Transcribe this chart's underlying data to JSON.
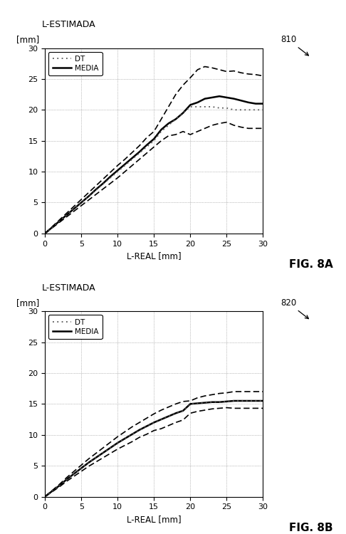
{
  "fig_width": 4.86,
  "fig_height": 7.5,
  "dpi": 100,
  "background_color": "#ffffff",
  "chart_a": {
    "title_left": "L-ESTIMADA",
    "mm_label": "[mm]",
    "xlabel": "L-REAL [mm]",
    "fig_label": "FIG. 8A",
    "ref_label": "810",
    "xlim": [
      0,
      30
    ],
    "ylim": [
      0,
      30
    ],
    "xticks": [
      0,
      5,
      10,
      15,
      20,
      25,
      30
    ],
    "yticks": [
      0,
      5,
      10,
      15,
      20,
      25,
      30
    ],
    "x": [
      0,
      1,
      2,
      3,
      4,
      5,
      6,
      7,
      8,
      9,
      10,
      11,
      12,
      13,
      14,
      15,
      16,
      17,
      18,
      19,
      20,
      21,
      22,
      23,
      24,
      25,
      26,
      27,
      28,
      29,
      30
    ],
    "media": [
      0,
      1.0,
      2.0,
      3.0,
      4.0,
      5.0,
      6.0,
      7.1,
      8.1,
      9.2,
      10.2,
      11.2,
      12.2,
      13.2,
      14.3,
      15.3,
      16.8,
      17.8,
      18.5,
      19.5,
      20.8,
      21.2,
      21.8,
      22.0,
      22.2,
      22.0,
      21.8,
      21.5,
      21.2,
      21.0,
      21.0
    ],
    "dt_dotted": [
      0,
      1.0,
      2.0,
      3.0,
      4.0,
      5.0,
      6.0,
      7.0,
      8.0,
      9.0,
      10.0,
      11.0,
      12.0,
      13.0,
      14.0,
      15.0,
      16.5,
      17.5,
      18.5,
      19.5,
      20.5,
      20.5,
      20.5,
      20.5,
      20.3,
      20.3,
      20.0,
      20.0,
      20.0,
      20.0,
      20.0
    ],
    "upper_dashed": [
      0,
      1.1,
      2.2,
      3.3,
      4.4,
      5.5,
      6.6,
      7.7,
      8.8,
      9.9,
      11.0,
      12.0,
      13.1,
      14.2,
      15.5,
      16.5,
      18.5,
      20.5,
      22.5,
      24.0,
      25.2,
      26.5,
      27.0,
      26.8,
      26.5,
      26.2,
      26.3,
      26.0,
      25.8,
      25.7,
      25.5
    ],
    "lower_dashed": [
      0,
      0.9,
      1.8,
      2.7,
      3.6,
      4.5,
      5.4,
      6.3,
      7.2,
      8.1,
      9.0,
      10.0,
      11.0,
      12.0,
      13.0,
      14.0,
      15.0,
      15.8,
      16.0,
      16.5,
      16.0,
      16.5,
      17.0,
      17.5,
      17.8,
      18.0,
      17.5,
      17.2,
      17.0,
      17.0,
      17.0
    ]
  },
  "chart_b": {
    "title_left": "L-ESTIMADA",
    "mm_label": "[mm]",
    "xlabel": "L-REAL [mm]",
    "fig_label": "FIG. 8B",
    "ref_label": "820",
    "xlim": [
      0,
      30
    ],
    "ylim": [
      0,
      30
    ],
    "xticks": [
      0,
      5,
      10,
      15,
      20,
      25,
      30
    ],
    "yticks": [
      0,
      5,
      10,
      15,
      20,
      25,
      30
    ],
    "x": [
      0,
      1,
      2,
      3,
      4,
      5,
      6,
      7,
      8,
      9,
      10,
      11,
      12,
      13,
      14,
      15,
      16,
      17,
      18,
      19,
      20,
      21,
      22,
      23,
      24,
      25,
      26,
      27,
      28,
      29,
      30
    ],
    "media": [
      0,
      0.9,
      1.8,
      2.8,
      3.7,
      4.6,
      5.5,
      6.3,
      7.1,
      7.9,
      8.7,
      9.4,
      10.1,
      10.8,
      11.4,
      12.0,
      12.5,
      13.0,
      13.5,
      13.9,
      15.0,
      15.1,
      15.2,
      15.3,
      15.3,
      15.4,
      15.5,
      15.5,
      15.5,
      15.5,
      15.5
    ],
    "dt_dotted": [
      0,
      0.9,
      1.8,
      2.8,
      3.7,
      4.6,
      5.5,
      6.3,
      7.1,
      7.9,
      8.7,
      9.4,
      10.1,
      10.8,
      11.4,
      12.0,
      12.5,
      13.0,
      13.5,
      13.9,
      15.0,
      15.1,
      15.2,
      15.3,
      15.3,
      15.4,
      15.5,
      15.5,
      15.5,
      15.5,
      15.5
    ],
    "upper_dashed": [
      0,
      1.0,
      2.0,
      3.1,
      4.1,
      5.1,
      6.1,
      7.0,
      7.9,
      8.8,
      9.7,
      10.5,
      11.3,
      12.0,
      12.7,
      13.4,
      14.0,
      14.5,
      15.0,
      15.4,
      15.5,
      16.0,
      16.3,
      16.5,
      16.7,
      16.8,
      17.0,
      17.0,
      17.0,
      17.0,
      17.0
    ],
    "lower_dashed": [
      0,
      0.8,
      1.6,
      2.5,
      3.3,
      4.1,
      4.9,
      5.6,
      6.3,
      7.0,
      7.7,
      8.3,
      8.9,
      9.6,
      10.1,
      10.7,
      11.0,
      11.5,
      12.0,
      12.4,
      13.5,
      13.8,
      14.0,
      14.2,
      14.3,
      14.4,
      14.3,
      14.3,
      14.3,
      14.3,
      14.3
    ]
  },
  "line_color": "#000000",
  "dashed_color": "#000000",
  "dotted_color": "#555555"
}
